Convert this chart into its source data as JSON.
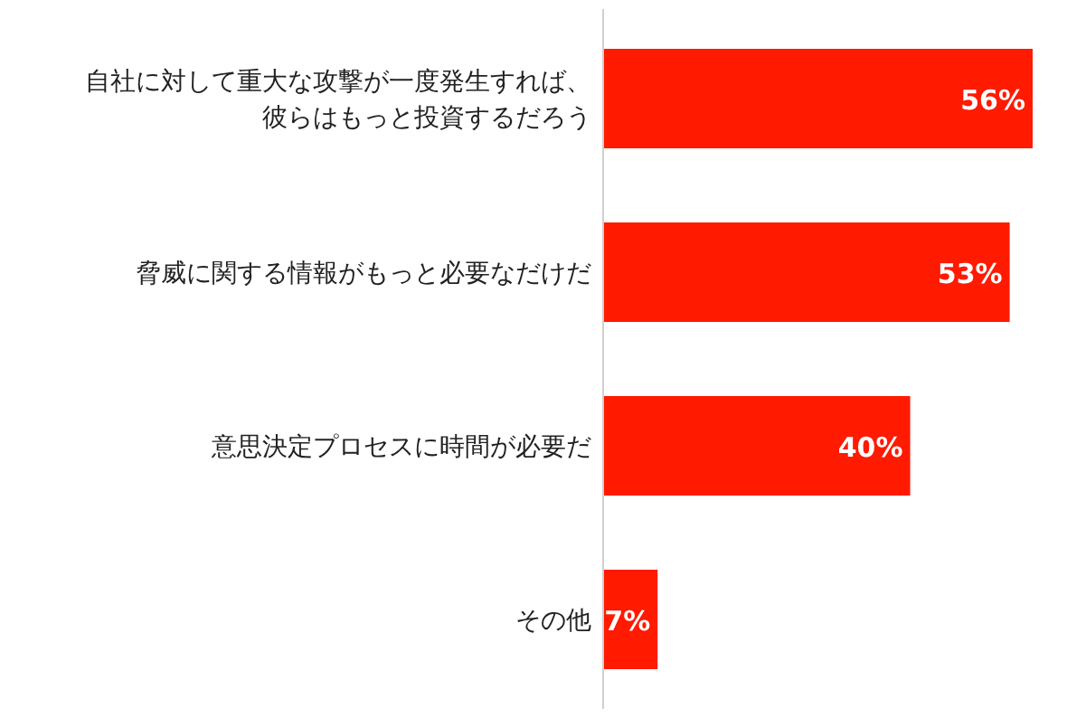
{
  "chart_data": {
    "type": "bar",
    "orientation": "horizontal",
    "categories": [
      "自社に対して重大な攻撃が一度発生すれば、彼らはもっと投資するだろう",
      "脅威に関する情報がもっと必要なだけだ",
      "意思決定プロセスに時間が必要だ",
      "その他"
    ],
    "values": [
      56,
      53,
      40,
      7
    ],
    "value_labels": [
      "56%",
      "53%",
      "40%",
      "7%"
    ],
    "color": "#ff1a00"
  }
}
